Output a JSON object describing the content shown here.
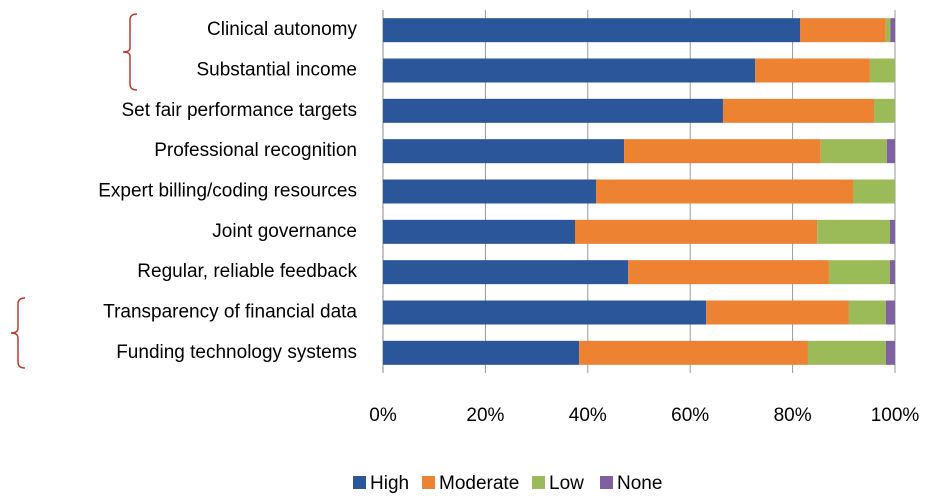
{
  "chart_data": {
    "type": "stacked_bar_horizontal",
    "categories": [
      "Clinical autonomy",
      "Substantial income",
      "Set fair performance targets",
      "Professional recognition",
      "Expert billing/coding resources",
      "Joint governance",
      "Regular, reliable feedback",
      "Transparency of financial data",
      "Funding technology systems"
    ],
    "series": [
      {
        "name": "High",
        "color": "#2b579a",
        "values": [
          81.5,
          72.7,
          66.4,
          47.1,
          41.6,
          37.5,
          47.9,
          63.1,
          38.3
        ]
      },
      {
        "name": "Moderate",
        "color": "#ed8233",
        "values": [
          16.7,
          22.4,
          29.5,
          38.4,
          50.2,
          47.3,
          39.2,
          27.9,
          44.7
        ]
      },
      {
        "name": "Low",
        "color": "#9bbb59",
        "values": [
          0.9,
          4.9,
          4.1,
          12.9,
          8.2,
          14.2,
          11.9,
          7.2,
          15.2
        ]
      },
      {
        "name": "None",
        "color": "#7f60a0",
        "values": [
          0.9,
          0,
          0,
          1.6,
          0,
          1.0,
          1.0,
          1.8,
          1.8
        ]
      }
    ],
    "xlim": [
      0,
      100
    ],
    "xticks": [
      {
        "value": 0,
        "label": "0%"
      },
      {
        "value": 20,
        "label": "20%"
      },
      {
        "value": 40,
        "label": "40%"
      },
      {
        "value": 60,
        "label": "60%"
      },
      {
        "value": 80,
        "label": "80%"
      },
      {
        "value": 100,
        "label": "100%"
      }
    ],
    "grid": true,
    "legend": "bottom"
  }
}
